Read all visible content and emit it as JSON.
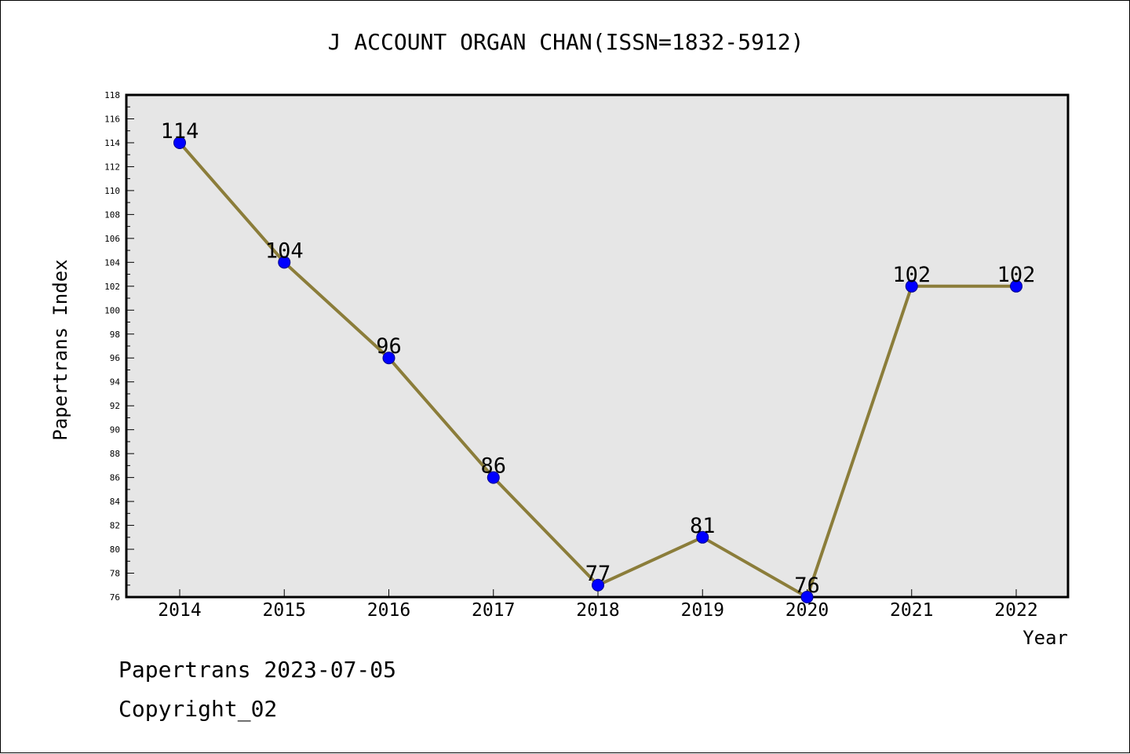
{
  "chart_data": {
    "type": "line",
    "title": "J ACCOUNT ORGAN CHAN(ISSN=1832-5912)",
    "xlabel": "Year",
    "ylabel": "Papertrans Index",
    "categories": [
      "2014",
      "2015",
      "2016",
      "2017",
      "2018",
      "2019",
      "2020",
      "2021",
      "2022"
    ],
    "series": [
      {
        "values": [
          114,
          104,
          96,
          86,
          77,
          81,
          76,
          102,
          102
        ]
      }
    ],
    "ylim": [
      76,
      118
    ],
    "ytick_step": 2,
    "grid": false,
    "colors": {
      "line": "#8b7d3a",
      "marker": "#0000ff",
      "plot_bg": "#e6e6e6"
    }
  },
  "footer": {
    "date_text": "Papertrans 2023-07-05",
    "copyright_text": "Copyright_02"
  }
}
